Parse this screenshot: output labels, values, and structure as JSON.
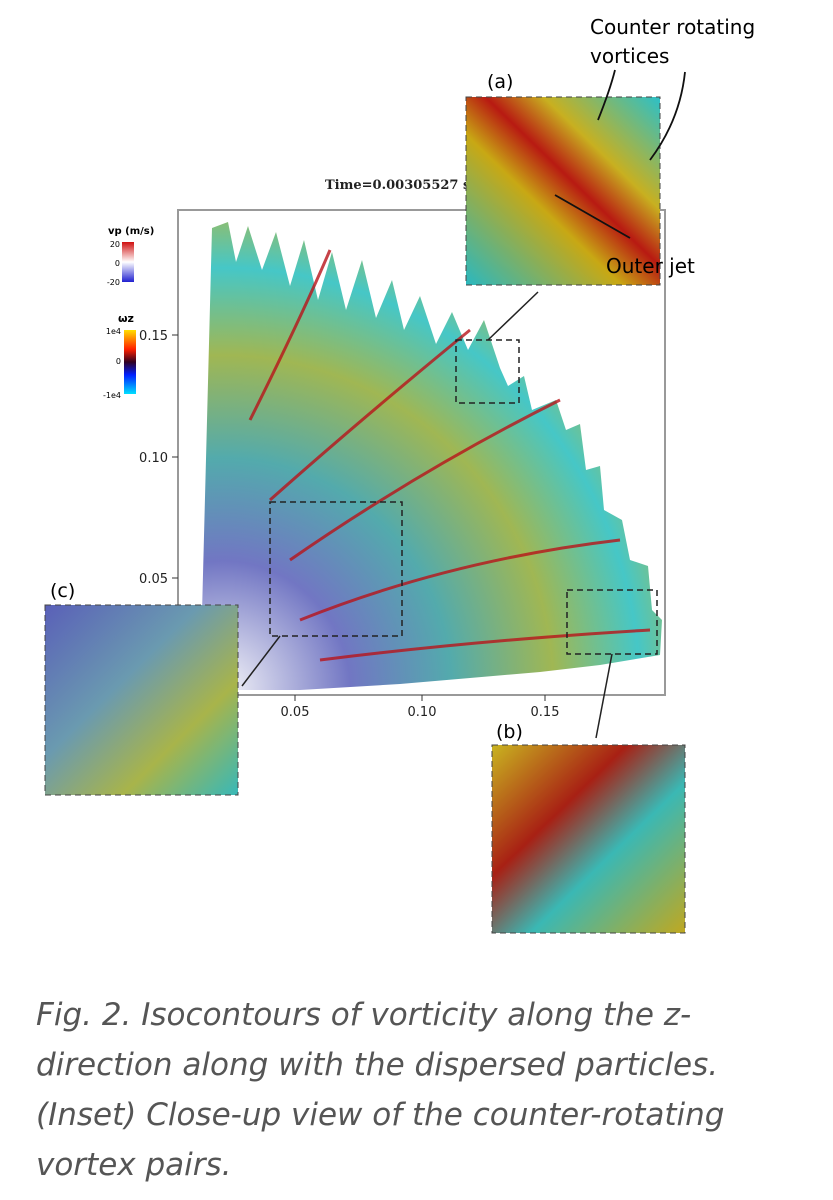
{
  "figure": {
    "time_label": "Time=0.00305527 s",
    "colorbars": [
      {
        "title": "vp (m/s)",
        "labels": [
          "20",
          "0",
          "-20"
        ]
      },
      {
        "title": "ωz",
        "labels": [
          "1e4",
          "0",
          "-1e4"
        ]
      }
    ],
    "y_tick_labels": [
      "0.15",
      "0.10",
      "0.05"
    ],
    "x_tick_labels": [
      "0.05",
      "0.10",
      "0.15"
    ],
    "insets": [
      {
        "label": "(a)",
        "annotations": [
          "Counter rotating",
          "vortices",
          "Outer jet"
        ]
      },
      {
        "label": "(b)"
      },
      {
        "label": "(c)"
      }
    ]
  },
  "caption": "Fig. 2. Isocontours of vorticity along the z-direction along with the dispersed particles. (Inset) Close-up view of the counter-rotating vortex pairs."
}
